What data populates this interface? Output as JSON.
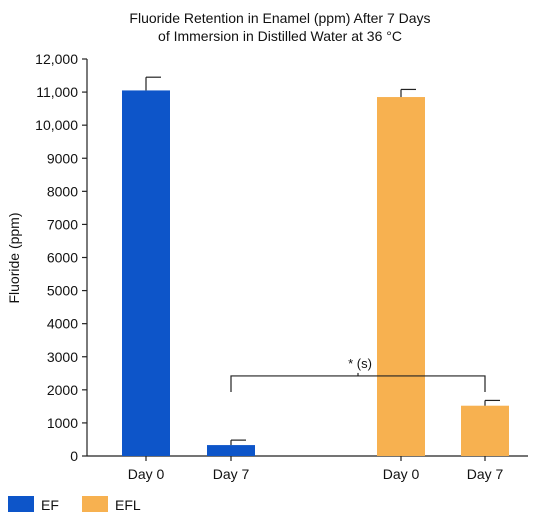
{
  "chart_data": {
    "type": "bar",
    "title_lines": [
      "Fluoride Retention in Enamel (ppm) After 7 Days",
      "of Immersion in Distilled Water at 36 °C"
    ],
    "xlabel": "",
    "ylabel": "Fluoride (ppm)",
    "ylim": [
      0,
      12000
    ],
    "yticks": [
      0,
      1000,
      2000,
      3000,
      4000,
      5000,
      6000,
      7000,
      8000,
      9000,
      10000,
      11000,
      12000
    ],
    "ytick_labels": [
      "0",
      "1000",
      "2000",
      "3000",
      "4000",
      "5000",
      "6000",
      "7000",
      "8000",
      "9000",
      "10,000",
      "11,000",
      "12,000"
    ],
    "grid": false,
    "legend_position": "bottom-left",
    "bars": [
      {
        "category": "Day 0",
        "series": "EF",
        "value": 11050,
        "error": 400
      },
      {
        "category": "Day 7",
        "series": "EF",
        "value": 330,
        "error": 150
      },
      {
        "category": "Day 0",
        "series": "EFL",
        "value": 10850,
        "error": 230
      },
      {
        "category": "Day 7",
        "series": "EFL",
        "value": 1520,
        "error": 160
      }
    ],
    "series": [
      {
        "name": "EF",
        "color": "#0d55c9"
      },
      {
        "name": "EFL",
        "color": "#f7b150"
      }
    ],
    "annotations": [
      {
        "text": "* (s)",
        "from_bar": 1,
        "to_bar": 3,
        "y": 2420
      }
    ]
  }
}
